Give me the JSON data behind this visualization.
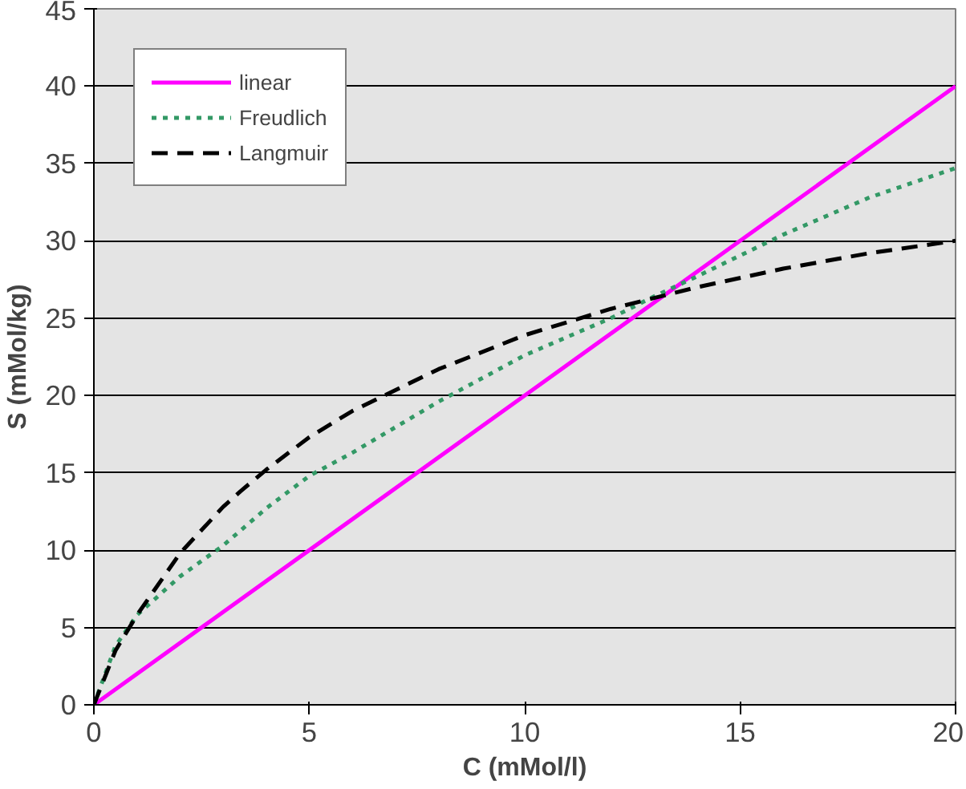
{
  "chart_data": {
    "type": "line",
    "xlabel": "C (mMol/l)",
    "ylabel": "S (mMol/kg)",
    "xlim": [
      0,
      20
    ],
    "xticks": [
      0,
      5,
      10,
      15,
      20
    ],
    "ylim": [
      0,
      45
    ],
    "yticks": [
      0,
      5,
      10,
      15,
      20,
      25,
      30,
      35,
      40,
      45
    ],
    "grid": "y",
    "legend": "top left",
    "series": [
      {
        "name": "linear",
        "color": "#ff00ff",
        "line_style": "solid",
        "x": [
          0,
          5,
          10,
          15,
          20
        ],
        "values": [
          0,
          10,
          20,
          30,
          40
        ]
      },
      {
        "name": "Freudlich",
        "color": "#339966",
        "line_style": "dotted",
        "x": [
          0,
          0.5,
          1,
          2,
          3,
          4,
          5,
          6,
          8,
          10,
          12,
          13,
          14,
          16,
          18,
          20
        ],
        "values": [
          0,
          3.8,
          5.8,
          8.3,
          10.3,
          12.7,
          14.8,
          16.3,
          19.6,
          22.6,
          25.0,
          26.4,
          27.7,
          30.4,
          32.8,
          34.7
        ]
      },
      {
        "name": "Langmuir",
        "color": "#000000",
        "line_style": "dashed",
        "x": [
          0,
          0.5,
          1,
          2,
          3,
          3.4,
          4,
          5,
          6,
          8,
          10,
          12,
          14,
          16,
          18,
          20
        ],
        "values": [
          0,
          3.5,
          5.8,
          9.8,
          12.8,
          13.8,
          15.2,
          17.3,
          19.0,
          21.7,
          23.9,
          25.6,
          27.0,
          28.2,
          29.2,
          30.0
        ]
      }
    ]
  }
}
